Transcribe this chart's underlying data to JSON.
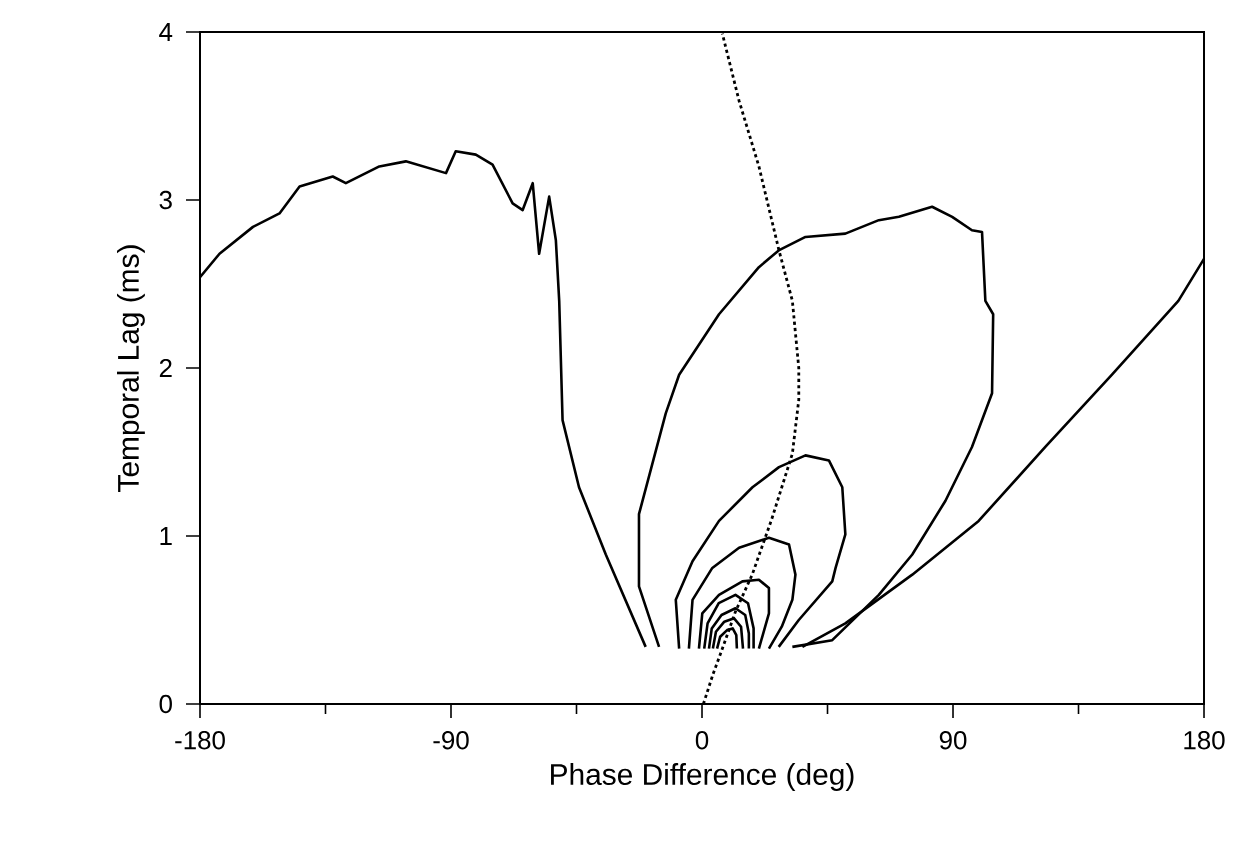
{
  "chart_data": {
    "type": "line",
    "xlabel": "Phase Difference (deg)",
    "ylabel": "Temporal Lag (ms)",
    "xlim": [
      -180,
      180
    ],
    "ylim": [
      0,
      4
    ],
    "xticks": [
      -180,
      {
        "value": -135,
        "label": null
      },
      -90,
      {
        "value": -45,
        "label": null
      },
      0,
      {
        "value": 45,
        "label": null
      },
      90,
      {
        "value": 135,
        "label": null
      },
      180
    ],
    "yticks": [
      0,
      1,
      2,
      3,
      4
    ],
    "grid": false,
    "marker": "none",
    "line_style": "solid",
    "series": [
      {
        "color": "#000000",
        "x": [
          -180,
          -173,
          -161,
          -151.5,
          -144.3,
          -132.4,
          -127.7,
          -115.7,
          -106.2,
          -91.8,
          -88.3,
          -81.1,
          -75.1,
          -67.9,
          -64.3,
          -60.7,
          -58.4,
          -54.8,
          -52.4,
          -51.2,
          -50.0,
          -44.1,
          -34.5,
          -20.2
        ],
        "values": [
          2.54,
          2.68,
          2.84,
          2.92,
          3.08,
          3.14,
          3.1,
          3.2,
          3.23,
          3.16,
          3.29,
          3.27,
          3.21,
          2.98,
          2.94,
          3.1,
          2.68,
          3.02,
          2.76,
          2.4,
          1.69,
          1.29,
          0.89,
          0.34
        ]
      },
      {
        "color": "#000000",
        "x": [
          -15.4,
          -22.6,
          -22.6,
          -13.0,
          -8.2,
          6.1,
          20.4,
          27.5,
          37.1,
          51.4,
          63.4,
          70.6,
          82.5,
          89.7,
          96.8,
          100.4,
          101.6,
          104.4,
          104.0,
          96.8,
          87.3,
          75.4,
          63.4,
          46.7,
          32.4
        ],
        "values": [
          0.34,
          0.7,
          1.13,
          1.73,
          1.96,
          2.32,
          2.6,
          2.7,
          2.78,
          2.8,
          2.88,
          2.9,
          2.96,
          2.9,
          2.82,
          2.81,
          2.4,
          2.32,
          1.85,
          1.53,
          1.21,
          0.89,
          0.65,
          0.38,
          0.34
        ]
      },
      {
        "color": "#000000",
        "x": [
          36.0,
          51.4,
          75.4,
          99.2,
          123.1,
          147.0,
          170.8,
          180
        ],
        "values": [
          0.34,
          0.48,
          0.77,
          1.09,
          1.53,
          1.96,
          2.4,
          2.65
        ]
      },
      {
        "color": "#000000",
        "x": [
          -8.2,
          -9.4,
          -3.4,
          6.1,
          18.1,
          27.6,
          37.1,
          45.5,
          50.3,
          51.4,
          47.9,
          46.7,
          34.7,
          27.5
        ],
        "values": [
          0.33,
          0.62,
          0.85,
          1.09,
          1.29,
          1.41,
          1.48,
          1.45,
          1.29,
          1.01,
          0.81,
          0.73,
          0.5,
          0.34
        ]
      },
      {
        "color": "#000000",
        "x": [
          -4.7,
          -3.4,
          3.7,
          13.3,
          24.0,
          31.2,
          33.5,
          32.4,
          28.6,
          24.0
        ],
        "values": [
          0.33,
          0.62,
          0.81,
          0.93,
          0.99,
          0.95,
          0.77,
          0.62,
          0.46,
          0.33
        ]
      },
      {
        "color": "#000000",
        "x": [
          -1.1,
          0.1,
          6.1,
          14.5,
          20.4,
          24.0,
          24.0,
          20.4
        ],
        "values": [
          0.33,
          0.54,
          0.65,
          0.73,
          0.74,
          0.69,
          0.54,
          0.33
        ]
      },
      {
        "color": "#000000",
        "x": [
          0.8,
          2.0,
          6.0,
          12.0,
          16.5,
          18.5,
          18.5
        ],
        "values": [
          0.33,
          0.48,
          0.6,
          0.65,
          0.6,
          0.45,
          0.33
        ]
      },
      {
        "color": "#000000",
        "x": [
          2.5,
          3.5,
          7.0,
          12.0,
          15.5,
          16.8,
          16.8
        ],
        "values": [
          0.33,
          0.45,
          0.53,
          0.57,
          0.53,
          0.42,
          0.33
        ]
      },
      {
        "color": "#000000",
        "x": [
          3.9,
          5.0,
          8.0,
          11.5,
          14.0,
          14.7
        ],
        "values": [
          0.33,
          0.43,
          0.49,
          0.51,
          0.46,
          0.33
        ]
      },
      {
        "color": "#000000",
        "x": [
          5.4,
          6.5,
          9.0,
          11.0,
          12.3,
          12.5
        ],
        "values": [
          0.33,
          0.4,
          0.44,
          0.45,
          0.41,
          0.33
        ]
      },
      {
        "color": "#000000",
        "line_style": "dotted",
        "x": [
          0.5,
          4.0,
          7.3,
          12.0,
          18.0,
          25.0,
          32.4,
          34.7,
          34.7,
          32.4,
          27.6,
          20.4,
          13.3,
          7.3
        ],
        "values": [
          0.0,
          0.18,
          0.33,
          0.55,
          0.77,
          1.1,
          1.49,
          1.81,
          2.0,
          2.4,
          2.7,
          3.2,
          3.59,
          3.99
        ]
      }
    ]
  }
}
